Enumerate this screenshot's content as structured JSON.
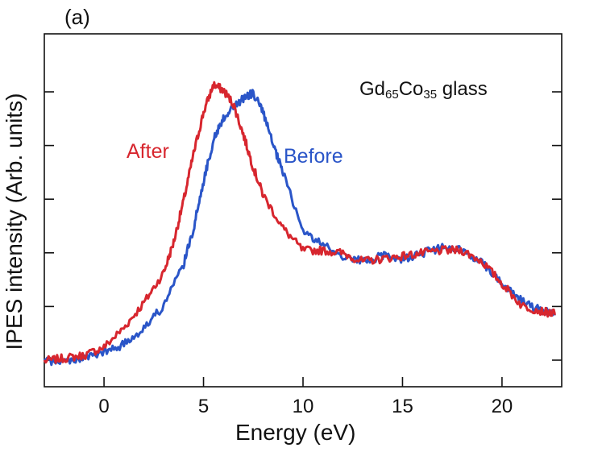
{
  "panel_label": "(a)",
  "sample": {
    "prefix": "Gd",
    "sub1": "65",
    "mid": "Co",
    "sub2": "35",
    "suffix": " glass"
  },
  "chart_data": {
    "type": "line",
    "title": "",
    "xlabel": "Energy  (eV)",
    "ylabel": "IPES intensity  (Arb. units)",
    "xlim": [
      -3,
      23
    ],
    "ylim": [
      0,
      1.05
    ],
    "xticks": [
      0,
      5,
      10,
      15,
      20
    ],
    "x_tick_labels": [
      "0",
      "5",
      "10",
      "15",
      "20"
    ],
    "y_ticks_count": 6,
    "y_tick_labels": [],
    "grid": false,
    "series": [
      {
        "name": "After",
        "color": "#d7262e",
        "x": [
          -3.0,
          -2.0,
          -1.0,
          0.0,
          1.0,
          2.0,
          3.0,
          3.5,
          4.0,
          4.5,
          5.0,
          5.5,
          6.0,
          6.5,
          7.0,
          7.5,
          8.0,
          9.0,
          10.0,
          11.0,
          12.0,
          13.0,
          14.0,
          15.0,
          16.0,
          17.0,
          18.0,
          19.0,
          20.0,
          21.0,
          22.0,
          22.7
        ],
        "y": [
          0.0,
          0.01,
          0.02,
          0.05,
          0.12,
          0.21,
          0.32,
          0.43,
          0.58,
          0.75,
          0.9,
          1.0,
          0.98,
          0.93,
          0.82,
          0.7,
          0.6,
          0.48,
          0.4,
          0.4,
          0.39,
          0.36,
          0.37,
          0.38,
          0.39,
          0.4,
          0.4,
          0.36,
          0.28,
          0.2,
          0.18,
          0.17
        ]
      },
      {
        "name": "Before",
        "color": "#2a55c8",
        "x": [
          -3.0,
          -2.0,
          -1.0,
          0.0,
          1.0,
          2.0,
          3.0,
          4.0,
          4.5,
          5.0,
          5.5,
          6.0,
          6.5,
          7.0,
          7.5,
          8.0,
          8.5,
          9.0,
          10.0,
          11.0,
          12.0,
          13.0,
          14.0,
          15.0,
          16.0,
          17.0,
          18.0,
          19.0,
          20.0,
          21.0,
          22.0,
          22.7
        ],
        "y": [
          0.0,
          0.0,
          0.01,
          0.03,
          0.06,
          0.12,
          0.2,
          0.35,
          0.48,
          0.65,
          0.8,
          0.88,
          0.92,
          0.95,
          0.97,
          0.9,
          0.78,
          0.68,
          0.47,
          0.42,
          0.38,
          0.36,
          0.38,
          0.37,
          0.39,
          0.41,
          0.4,
          0.36,
          0.28,
          0.22,
          0.18,
          0.17
        ]
      }
    ]
  }
}
